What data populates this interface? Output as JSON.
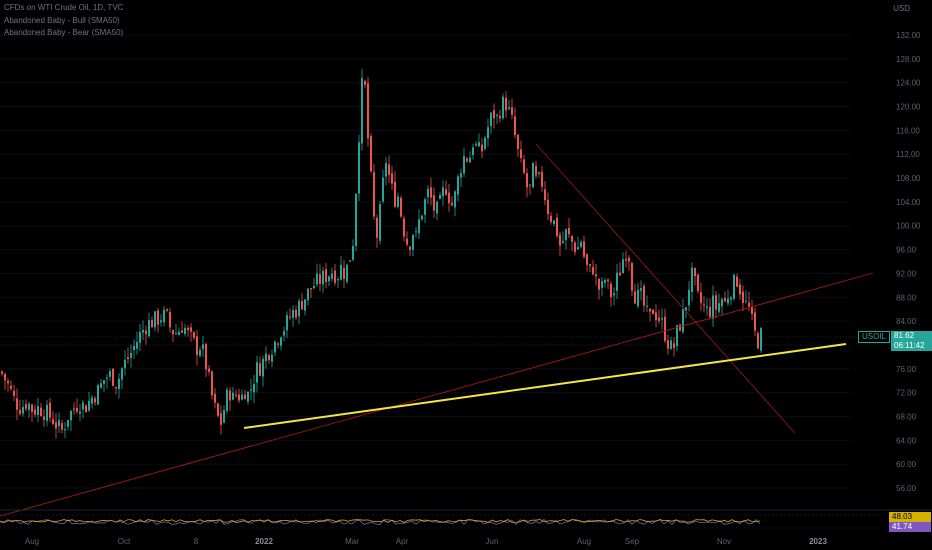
{
  "header": {
    "title": "CFDs on WTI Crude Oil, 1D, TVC",
    "indicator_1": "Abandoned Baby - Bull (SMA50)",
    "indicator_2": "Abandoned Baby - Bear (SMA50)"
  },
  "currency": "USD",
  "price_tag": {
    "symbol": "USOIL",
    "price": "81.62",
    "countdown": "06:11:42"
  },
  "oscillator_tags": {
    "upper": "48.03",
    "lower": "41.74"
  },
  "colors": {
    "up": "#26a69a",
    "down": "#ef5350",
    "yellow_line": "#f5e642",
    "red_line": "#b22222",
    "tag_bg": "#26a69a",
    "osc_purple": "#7e57c2",
    "osc_yellow": "#d4b000"
  },
  "chart_data": {
    "type": "candlestick",
    "ylim": [
      54,
      134
    ],
    "y_ticks": [
      "132.00",
      "128.00",
      "124.00",
      "120.00",
      "116.00",
      "112.00",
      "108.00",
      "104.00",
      "100.00",
      "96.00",
      "92.00",
      "88.00",
      "84.00",
      "80.00",
      "76.00",
      "72.00",
      "68.00",
      "64.00",
      "60.00",
      "56.00"
    ],
    "x_ticks": [
      {
        "label": "Aug",
        "bold": false
      },
      {
        "label": "Oct",
        "bold": false
      },
      {
        "label": "8",
        "bold": false
      },
      {
        "label": "2022",
        "bold": true
      },
      {
        "label": "Mar",
        "bold": false
      },
      {
        "label": "Apr",
        "bold": false
      },
      {
        "label": "Jun",
        "bold": false
      },
      {
        "label": "Aug",
        "bold": false
      },
      {
        "label": "Sep",
        "bold": false
      },
      {
        "label": "Nov",
        "bold": false
      },
      {
        "label": "2023",
        "bold": true
      }
    ],
    "close_path": [
      [
        0,
        75.5
      ],
      [
        8,
        73
      ],
      [
        14,
        70.5
      ],
      [
        20,
        69.5
      ],
      [
        26,
        70.5
      ],
      [
        32,
        69
      ],
      [
        38,
        69.5
      ],
      [
        46,
        68.5
      ],
      [
        52,
        67.5
      ],
      [
        58,
        66
      ],
      [
        62,
        65.5
      ],
      [
        66,
        68
      ],
      [
        72,
        69
      ],
      [
        78,
        70.5
      ],
      [
        84,
        69.5
      ],
      [
        90,
        71
      ],
      [
        98,
        72.5
      ],
      [
        104,
        74.5
      ],
      [
        110,
        75
      ],
      [
        116,
        73.5
      ],
      [
        122,
        76.5
      ],
      [
        128,
        78
      ],
      [
        134,
        80
      ],
      [
        140,
        82
      ],
      [
        146,
        83.5
      ],
      [
        152,
        84
      ],
      [
        158,
        84.5
      ],
      [
        162,
        85
      ],
      [
        166,
        84.5
      ],
      [
        170,
        82.5
      ],
      [
        176,
        82
      ],
      [
        182,
        83.5
      ],
      [
        186,
        82
      ],
      [
        192,
        80.5
      ],
      [
        196,
        79.5
      ],
      [
        200,
        80
      ],
      [
        204,
        77.5
      ],
      [
        208,
        74
      ],
      [
        212,
        70.5
      ],
      [
        216,
        68
      ],
      [
        220,
        67
      ],
      [
        224,
        70
      ],
      [
        228,
        72.5
      ],
      [
        232,
        71
      ],
      [
        236,
        72
      ],
      [
        240,
        71
      ],
      [
        244,
        72.5
      ],
      [
        248,
        71.5
      ],
      [
        252,
        74
      ],
      [
        256,
        76
      ],
      [
        260,
        76.5
      ],
      [
        264,
        78
      ],
      [
        268,
        79
      ],
      [
        272,
        80
      ],
      [
        276,
        81
      ],
      [
        280,
        82.5
      ],
      [
        284,
        83
      ],
      [
        288,
        84.5
      ],
      [
        292,
        85.5
      ],
      [
        296,
        86
      ],
      [
        300,
        87
      ],
      [
        304,
        88
      ],
      [
        308,
        89
      ],
      [
        312,
        90
      ],
      [
        316,
        90.5
      ],
      [
        320,
        91
      ],
      [
        324,
        91.5
      ],
      [
        328,
        92
      ],
      [
        332,
        92.5
      ],
      [
        336,
        91.5
      ],
      [
        340,
        93
      ],
      [
        344,
        92
      ],
      [
        348,
        94
      ],
      [
        352,
        97.5
      ],
      [
        356,
        109
      ],
      [
        360,
        122
      ],
      [
        363,
        126
      ],
      [
        366,
        117
      ],
      [
        369,
        110
      ],
      [
        372,
        103
      ],
      [
        375,
        97
      ],
      [
        378,
        101
      ],
      [
        381,
        104.5
      ],
      [
        384,
        112
      ],
      [
        387,
        109
      ],
      [
        390,
        107
      ],
      [
        393,
        104
      ],
      [
        396,
        106
      ],
      [
        399,
        103
      ],
      [
        402,
        100
      ],
      [
        405,
        98
      ],
      [
        408,
        96
      ],
      [
        411,
        100
      ],
      [
        414,
        97
      ],
      [
        417,
        100
      ],
      [
        420,
        102
      ],
      [
        424,
        104
      ],
      [
        428,
        106
      ],
      [
        432,
        103
      ],
      [
        436,
        102.5
      ],
      [
        440,
        104
      ],
      [
        444,
        107
      ],
      [
        448,
        105
      ],
      [
        452,
        103
      ],
      [
        456,
        107
      ],
      [
        460,
        110
      ],
      [
        464,
        112
      ],
      [
        468,
        111
      ],
      [
        472,
        114
      ],
      [
        476,
        113
      ],
      [
        480,
        112
      ],
      [
        484,
        115
      ],
      [
        488,
        117
      ],
      [
        492,
        119
      ],
      [
        496,
        118
      ],
      [
        500,
        120
      ],
      [
        504,
        121
      ],
      [
        508,
        119
      ],
      [
        512,
        117
      ],
      [
        516,
        113
      ],
      [
        520,
        110
      ],
      [
        524,
        108
      ],
      [
        528,
        105
      ],
      [
        532,
        109
      ],
      [
        536,
        107
      ],
      [
        540,
        108
      ],
      [
        544,
        105
      ],
      [
        548,
        102
      ],
      [
        552,
        101
      ],
      [
        556,
        99
      ],
      [
        560,
        96
      ],
      [
        564,
        99
      ],
      [
        568,
        98
      ],
      [
        572,
        97
      ],
      [
        576,
        96
      ],
      [
        580,
        97.5
      ],
      [
        584,
        94
      ],
      [
        588,
        92
      ],
      [
        592,
        93
      ],
      [
        596,
        90
      ],
      [
        600,
        89
      ],
      [
        604,
        91
      ],
      [
        608,
        89
      ],
      [
        612,
        88
      ],
      [
        616,
        91
      ],
      [
        620,
        93
      ],
      [
        624,
        96
      ],
      [
        628,
        95
      ],
      [
        632,
        89
      ],
      [
        636,
        88
      ],
      [
        640,
        88
      ],
      [
        644,
        86
      ],
      [
        648,
        84
      ],
      [
        652,
        86
      ],
      [
        656,
        85
      ],
      [
        660,
        84
      ],
      [
        664,
        82
      ],
      [
        668,
        80
      ],
      [
        672,
        79
      ],
      [
        676,
        82
      ],
      [
        680,
        84
      ],
      [
        684,
        86
      ],
      [
        688,
        90
      ],
      [
        692,
        92
      ],
      [
        696,
        88
      ],
      [
        700,
        87
      ],
      [
        704,
        86
      ],
      [
        708,
        85.5
      ],
      [
        712,
        87
      ],
      [
        716,
        86
      ],
      [
        720,
        88
      ],
      [
        724,
        87
      ],
      [
        728,
        89
      ],
      [
        732,
        90
      ],
      [
        736,
        91
      ],
      [
        740,
        89
      ],
      [
        744,
        87
      ],
      [
        748,
        86
      ],
      [
        752,
        83
      ],
      [
        756,
        80.5
      ],
      [
        760,
        81.6
      ]
    ],
    "trendlines": [
      {
        "name": "yellow",
        "from": [
          "2021-12-15",
          68.3
        ],
        "to": [
          "2022-12-20",
          81.3
        ]
      },
      {
        "name": "red_rising",
        "from": [
          "2021-07-28",
          55.5
        ],
        "to": [
          "2022-12-30",
          91.5
        ]
      },
      {
        "name": "red_falling",
        "from": [
          "2022-06-20",
          111.7
        ],
        "to": [
          "2022-12-25",
          67.3
        ]
      }
    ],
    "oscillator": {
      "ylim": [
        0,
        100
      ],
      "purple_level": 41.74,
      "yellow_level": 48.03
    }
  }
}
